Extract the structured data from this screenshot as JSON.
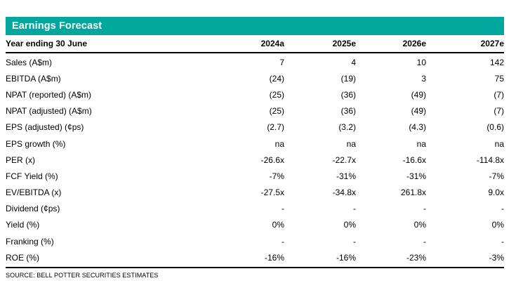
{
  "colors": {
    "accent_teal": "#00A79D",
    "title_text": "#FFFFFF",
    "body_text": "#000000"
  },
  "table": {
    "title": "Earnings Forecast",
    "header": {
      "label": "Year ending 30 June",
      "columns": [
        "2024a",
        "2025e",
        "2026e",
        "2027e"
      ]
    },
    "rows": [
      {
        "label": "Sales (A$m)",
        "values": [
          "7",
          "4",
          "10",
          "142"
        ]
      },
      {
        "label": "EBITDA (A$m)",
        "values": [
          "(24)",
          "(19)",
          "3",
          "75"
        ]
      },
      {
        "label": "NPAT (reported) (A$m)",
        "values": [
          "(25)",
          "(36)",
          "(49)",
          "(7)"
        ]
      },
      {
        "label": "NPAT (adjusted) (A$m)",
        "values": [
          "(25)",
          "(36)",
          "(49)",
          "(7)"
        ]
      },
      {
        "label": "EPS (adjusted) (¢ps)",
        "values": [
          "(2.7)",
          "(3.2)",
          "(4.3)",
          "(0.6)"
        ]
      },
      {
        "label": "EPS growth (%)",
        "values": [
          "na",
          "na",
          "na",
          "na"
        ]
      },
      {
        "label": "PER (x)",
        "values": [
          "-26.6x",
          "-22.7x",
          "-16.6x",
          "-114.8x"
        ]
      },
      {
        "label": "FCF Yield (%)",
        "values": [
          "-7%",
          "-31%",
          "-31%",
          "-7%"
        ]
      },
      {
        "label": "EV/EBITDA (x)",
        "values": [
          "-27.5x",
          "-34.8x",
          "261.8x",
          "9.0x"
        ]
      },
      {
        "label": "Dividend (¢ps)",
        "values": [
          "-",
          "-",
          "-",
          "-"
        ]
      },
      {
        "label": "Yield (%)",
        "values": [
          "0%",
          "0%",
          "0%",
          "0%"
        ]
      },
      {
        "label": "Franking (%)",
        "values": [
          "-",
          "-",
          "-",
          "-"
        ]
      },
      {
        "label": "ROE (%)",
        "values": [
          "-16%",
          "-16%",
          "-23%",
          "-3%"
        ]
      }
    ],
    "source": "SOURCE: BELL POTTER SECURITIES ESTIMATES"
  }
}
